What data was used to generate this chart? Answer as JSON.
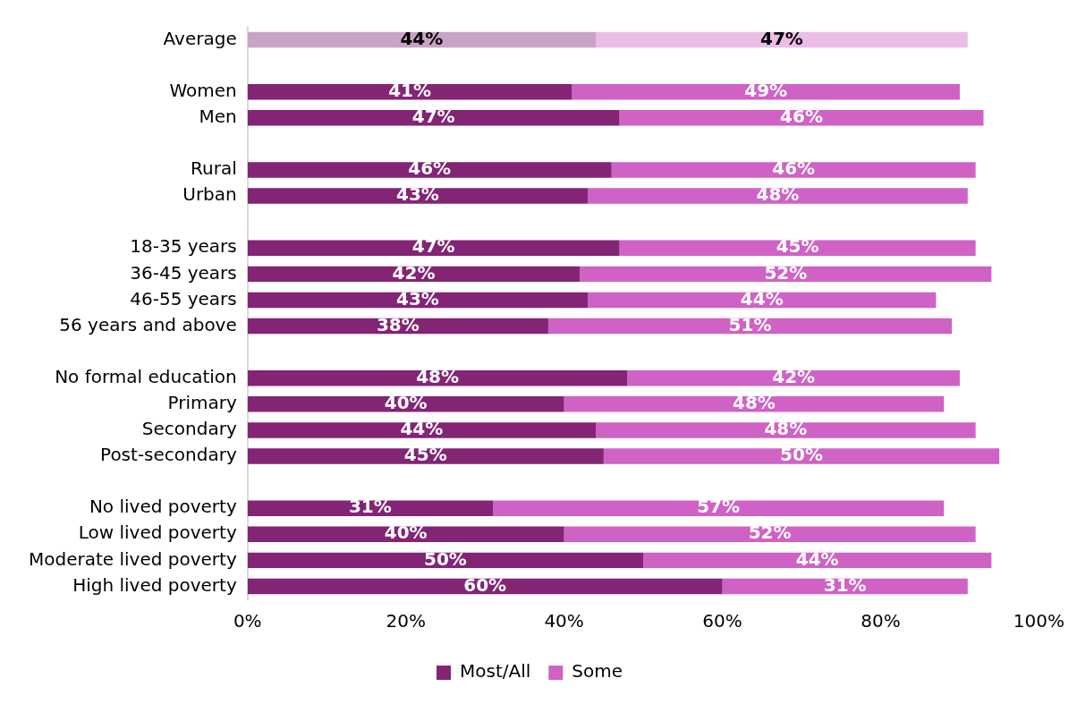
{
  "chart_data": {
    "type": "bar",
    "orientation": "horizontal",
    "stacked": true,
    "categories": [
      "Average",
      null,
      "Women",
      "Men",
      null,
      "Rural",
      "Urban",
      null,
      "18-35 years",
      "36-45 years",
      "46-55 years",
      "56 years and above",
      null,
      "No formal education",
      "Primary",
      "Secondary",
      "Post-secondary",
      null,
      "No lived poverty",
      "Low lived poverty",
      "Moderate lived poverty",
      "High lived poverty"
    ],
    "series": [
      {
        "name": "Most/All",
        "color": "#832475",
        "colors": [
          "#c9a3c4",
          null,
          "#832475",
          "#832475",
          null,
          "#832475",
          "#832475",
          null,
          "#832475",
          "#832475",
          "#832475",
          "#832475",
          null,
          "#832475",
          "#832475",
          "#832475",
          "#832475",
          null,
          "#832475",
          "#832475",
          "#832475",
          "#832475"
        ],
        "values": [
          44,
          null,
          41,
          47,
          null,
          46,
          43,
          null,
          47,
          42,
          43,
          38,
          null,
          48,
          40,
          44,
          45,
          null,
          31,
          40,
          50,
          60
        ],
        "value_labels": [
          "44%",
          null,
          "41%",
          "47%",
          null,
          "46%",
          "43%",
          null,
          "47%",
          "42%",
          "43%",
          "38%",
          null,
          "48%",
          "40%",
          "44%",
          "45%",
          null,
          "31%",
          "40%",
          "50%",
          "60%"
        ]
      },
      {
        "name": "Some",
        "color": "#cf62c4",
        "colors": [
          "#ebbde6",
          null,
          "#cf62c4",
          "#cf62c4",
          null,
          "#cf62c4",
          "#cf62c4",
          null,
          "#cf62c4",
          "#cf62c4",
          "#cf62c4",
          "#cf62c4",
          null,
          "#cf62c4",
          "#cf62c4",
          "#cf62c4",
          "#cf62c4",
          null,
          "#cf62c4",
          "#cf62c4",
          "#cf62c4",
          "#cf62c4"
        ],
        "values": [
          47,
          null,
          49,
          46,
          null,
          46,
          48,
          null,
          45,
          52,
          44,
          51,
          null,
          42,
          48,
          48,
          50,
          null,
          57,
          52,
          44,
          31
        ],
        "value_labels": [
          "47%",
          null,
          "49%",
          "46%",
          null,
          "46%",
          "48%",
          null,
          "45%",
          "52%",
          "44%",
          "51%",
          null,
          "42%",
          "48%",
          "48%",
          "50%",
          null,
          "57%",
          "52%",
          "44%",
          "31%"
        ]
      }
    ],
    "xlim": [
      0,
      100
    ],
    "xticks": [
      {
        "value": 0,
        "label": "0%"
      },
      {
        "value": 20,
        "label": "20%"
      },
      {
        "value": 40,
        "label": "40%"
      },
      {
        "value": 60,
        "label": "60%"
      },
      {
        "value": 80,
        "label": "80%"
      },
      {
        "value": 100,
        "label": "100%"
      }
    ],
    "grid": false,
    "legend": "bottom"
  }
}
